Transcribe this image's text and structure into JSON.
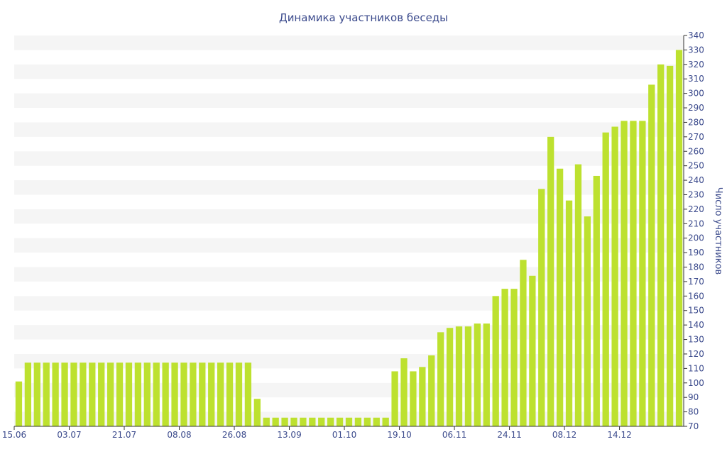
{
  "chart_data": {
    "type": "bar",
    "title": "Динамика участников беседы",
    "xlabel": "",
    "ylabel": "Число участников",
    "y_axis_position": "right",
    "ylim": [
      70,
      340
    ],
    "y_ticks": [
      70,
      80,
      90,
      100,
      110,
      120,
      130,
      140,
      150,
      160,
      170,
      180,
      190,
      200,
      210,
      220,
      230,
      240,
      250,
      260,
      270,
      280,
      290,
      300,
      310,
      320,
      330,
      340
    ],
    "x_tick_labels": [
      "15.06",
      "03.07",
      "21.07",
      "08.08",
      "26.08",
      "13.09",
      "01.10",
      "19.10",
      "06.11",
      "24.11",
      "08.12",
      "14.12"
    ],
    "x_tick_indices": [
      0,
      6,
      12,
      18,
      24,
      30,
      36,
      42,
      48,
      54,
      60,
      66
    ],
    "grid": "alternating horizontal bands",
    "legend": "none",
    "colors": {
      "bar": "#bde12f",
      "text": "#3b4a8c",
      "band": "#f5f5f5"
    },
    "values": [
      101,
      114,
      114,
      114,
      114,
      114,
      114,
      114,
      114,
      114,
      114,
      114,
      114,
      114,
      114,
      114,
      114,
      114,
      114,
      114,
      114,
      114,
      114,
      114,
      114,
      114,
      89,
      76,
      76,
      76,
      76,
      76,
      76,
      76,
      76,
      76,
      76,
      76,
      76,
      76,
      76,
      108,
      117,
      108,
      111,
      119,
      135,
      138,
      139,
      139,
      141,
      141,
      160,
      165,
      165,
      185,
      174,
      234,
      270,
      248,
      226,
      251,
      215,
      243,
      273,
      277,
      281,
      281,
      281,
      306,
      320,
      319,
      330
    ]
  }
}
